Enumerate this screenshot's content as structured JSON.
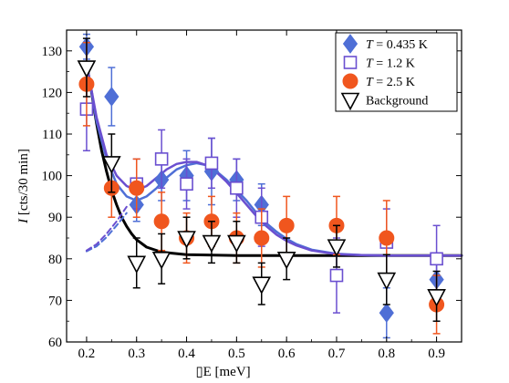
{
  "chart_data": {
    "type": "scatter",
    "title": "",
    "xlabel": "▯E [meV]",
    "ylabel": "I [cts/30 min]",
    "xlim": [
      0.16,
      0.95
    ],
    "ylim": [
      60,
      135
    ],
    "xticks": [
      0.2,
      0.3,
      0.4,
      0.5,
      0.6,
      0.7,
      0.8,
      0.9
    ],
    "xtick_labels": [
      "0.2",
      "0.3",
      "0.4",
      "0.5",
      "0.6",
      "0.7",
      "0.8",
      "0.9"
    ],
    "yticks": [
      60,
      70,
      80,
      90,
      100,
      110,
      120,
      130
    ],
    "ytick_labels": [
      "60",
      "70",
      "80",
      "90",
      "100",
      "110",
      "120",
      "130"
    ],
    "legend_position": "top-right",
    "legend": [
      {
        "label_var": "T",
        "label_rest": " = 0.435 K",
        "marker": "diamond",
        "color": "#4f6fd6"
      },
      {
        "label_var": "T",
        "label_rest": " = 1.2 K",
        "marker": "open-square",
        "color": "#6a4fd0"
      },
      {
        "label_var": "T",
        "label_rest": " = 2.5 K",
        "marker": "circle",
        "color": "#f0561e"
      },
      {
        "label_var": "",
        "label_rest": "Background",
        "marker": "open-triangle-down",
        "color": "#000000"
      }
    ],
    "series": [
      {
        "name": "T = 0.435 K",
        "marker": "diamond",
        "color": "#4f6fd6",
        "points": [
          {
            "x": 0.2,
            "y": 131,
            "err": 3
          },
          {
            "x": 0.25,
            "y": 119,
            "err": 7
          },
          {
            "x": 0.3,
            "y": 93,
            "err": 4
          },
          {
            "x": 0.35,
            "y": 99,
            "err": 5
          },
          {
            "x": 0.4,
            "y": 100,
            "err": 6
          },
          {
            "x": 0.45,
            "y": 101,
            "err": 8
          },
          {
            "x": 0.5,
            "y": 99,
            "err": 5
          },
          {
            "x": 0.55,
            "y": 93,
            "err": 5
          },
          {
            "x": 0.8,
            "y": 67,
            "err": 6
          },
          {
            "x": 0.9,
            "y": 75,
            "err": 6
          }
        ]
      },
      {
        "name": "T = 1.2 K",
        "marker": "open-square",
        "color": "#6a4fd0",
        "points": [
          {
            "x": 0.2,
            "y": 116,
            "err": 10
          },
          {
            "x": 0.3,
            "y": 98,
            "err": 6
          },
          {
            "x": 0.35,
            "y": 104,
            "err": 7
          },
          {
            "x": 0.4,
            "y": 98,
            "err": 6
          },
          {
            "x": 0.45,
            "y": 103,
            "err": 6
          },
          {
            "x": 0.5,
            "y": 97,
            "err": 7
          },
          {
            "x": 0.55,
            "y": 90,
            "err": 7
          },
          {
            "x": 0.7,
            "y": 76,
            "err": 9
          },
          {
            "x": 0.8,
            "y": 84,
            "err": 8
          },
          {
            "x": 0.9,
            "y": 80,
            "err": 8
          }
        ]
      },
      {
        "name": "T = 2.5 K",
        "marker": "circle",
        "color": "#f0561e",
        "points": [
          {
            "x": 0.2,
            "y": 122,
            "err": 10
          },
          {
            "x": 0.25,
            "y": 97,
            "err": 7
          },
          {
            "x": 0.3,
            "y": 97,
            "err": 7
          },
          {
            "x": 0.35,
            "y": 89,
            "err": 7
          },
          {
            "x": 0.4,
            "y": 85,
            "err": 6
          },
          {
            "x": 0.45,
            "y": 89,
            "err": 6
          },
          {
            "x": 0.5,
            "y": 85,
            "err": 6
          },
          {
            "x": 0.55,
            "y": 85,
            "err": 7
          },
          {
            "x": 0.6,
            "y": 88,
            "err": 7
          },
          {
            "x": 0.7,
            "y": 88,
            "err": 7
          },
          {
            "x": 0.8,
            "y": 85,
            "err": 9
          },
          {
            "x": 0.9,
            "y": 69,
            "err": 7
          }
        ]
      },
      {
        "name": "Background",
        "marker": "open-triangle-down",
        "color": "#000000",
        "points": [
          {
            "x": 0.2,
            "y": 126,
            "err": 7
          },
          {
            "x": 0.25,
            "y": 103,
            "err": 7
          },
          {
            "x": 0.3,
            "y": 79,
            "err": 6
          },
          {
            "x": 0.35,
            "y": 80,
            "err": 6
          },
          {
            "x": 0.4,
            "y": 85,
            "err": 5
          },
          {
            "x": 0.45,
            "y": 84,
            "err": 5
          },
          {
            "x": 0.5,
            "y": 84,
            "err": 5
          },
          {
            "x": 0.55,
            "y": 74,
            "err": 5
          },
          {
            "x": 0.6,
            "y": 80,
            "err": 5
          },
          {
            "x": 0.7,
            "y": 83,
            "err": 5
          },
          {
            "x": 0.8,
            "y": 75,
            "err": 6
          },
          {
            "x": 0.9,
            "y": 71,
            "err": 6
          }
        ]
      }
    ],
    "fit_curves": [
      {
        "name": "background-fit",
        "color": "#000000",
        "style": "solid",
        "width": 3,
        "points": [
          [
            0.2,
            127
          ],
          [
            0.21,
            120
          ],
          [
            0.22,
            112.5
          ],
          [
            0.23,
            106
          ],
          [
            0.24,
            101
          ],
          [
            0.25,
            96.5
          ],
          [
            0.26,
            93
          ],
          [
            0.27,
            90
          ],
          [
            0.28,
            87.8
          ],
          [
            0.29,
            86
          ],
          [
            0.3,
            84.6
          ],
          [
            0.32,
            82.8
          ],
          [
            0.35,
            81.6
          ],
          [
            0.4,
            81
          ],
          [
            0.5,
            80.8
          ],
          [
            0.6,
            80.8
          ],
          [
            0.7,
            80.8
          ],
          [
            0.8,
            80.8
          ],
          [
            0.95,
            80.8
          ]
        ]
      },
      {
        "name": "fit-0.435K",
        "color": "#4f6fd6",
        "style": "solid",
        "width": 2.5,
        "points": [
          [
            0.2,
            127
          ],
          [
            0.22,
            113
          ],
          [
            0.24,
            104
          ],
          [
            0.26,
            98
          ],
          [
            0.28,
            95
          ],
          [
            0.3,
            94
          ],
          [
            0.32,
            95
          ],
          [
            0.34,
            97
          ],
          [
            0.36,
            99.5
          ],
          [
            0.38,
            101.5
          ],
          [
            0.4,
            102.5
          ],
          [
            0.42,
            103
          ],
          [
            0.44,
            102.5
          ],
          [
            0.46,
            101
          ],
          [
            0.48,
            99
          ],
          [
            0.5,
            96.5
          ],
          [
            0.52,
            94
          ],
          [
            0.54,
            91
          ],
          [
            0.56,
            88.5
          ],
          [
            0.58,
            86.5
          ],
          [
            0.6,
            84.8
          ],
          [
            0.62,
            83.5
          ],
          [
            0.65,
            82.2
          ],
          [
            0.7,
            81.2
          ],
          [
            0.75,
            80.9
          ],
          [
            0.8,
            80.8
          ],
          [
            0.95,
            80.8
          ]
        ]
      },
      {
        "name": "fit-1.2K",
        "color": "#6a4fd0",
        "style": "solid",
        "width": 2.5,
        "points": [
          [
            0.2,
            127
          ],
          [
            0.22,
            114
          ],
          [
            0.24,
            105
          ],
          [
            0.26,
            100
          ],
          [
            0.28,
            97.5
          ],
          [
            0.3,
            96.5
          ],
          [
            0.32,
            97.5
          ],
          [
            0.34,
            99.5
          ],
          [
            0.36,
            101.5
          ],
          [
            0.38,
            102.8
          ],
          [
            0.4,
            103.3
          ],
          [
            0.42,
            103.3
          ],
          [
            0.44,
            102.5
          ],
          [
            0.46,
            100.8
          ],
          [
            0.48,
            98.5
          ],
          [
            0.5,
            95.8
          ],
          [
            0.52,
            93
          ],
          [
            0.54,
            90.2
          ],
          [
            0.56,
            87.8
          ],
          [
            0.58,
            85.8
          ],
          [
            0.6,
            84.3
          ],
          [
            0.62,
            83.2
          ],
          [
            0.65,
            82
          ],
          [
            0.7,
            81.1
          ],
          [
            0.75,
            80.9
          ],
          [
            0.8,
            80.8
          ],
          [
            0.95,
            80.8
          ]
        ]
      },
      {
        "name": "fit-0.435K-extrapolation",
        "color": "#4f6fd6",
        "style": "dashed",
        "width": 2,
        "points": [
          [
            0.2,
            81.8
          ],
          [
            0.22,
            83
          ],
          [
            0.24,
            85.2
          ],
          [
            0.26,
            88
          ],
          [
            0.28,
            91
          ]
        ]
      },
      {
        "name": "fit-1.2K-extrapolation",
        "color": "#6a4fd0",
        "style": "dashed",
        "width": 2,
        "points": [
          [
            0.2,
            82
          ],
          [
            0.22,
            83.5
          ],
          [
            0.24,
            86
          ],
          [
            0.26,
            89
          ],
          [
            0.28,
            92.5
          ]
        ]
      }
    ]
  }
}
